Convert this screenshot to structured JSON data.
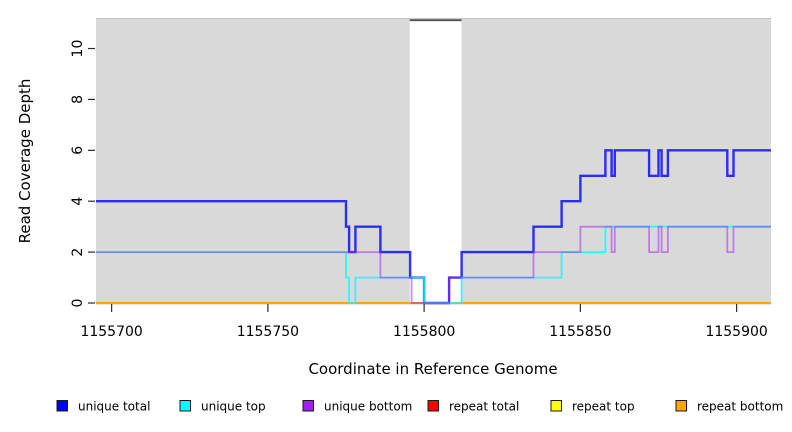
{
  "chart_data": {
    "type": "line",
    "subtype": "step-coverage",
    "title": "",
    "xlabel": "Coordinate in Reference Genome",
    "ylabel": "Read Coverage Depth",
    "xlim": [
      1155695,
      1155911
    ],
    "ylim": [
      0,
      11.16
    ],
    "xticks": [
      1155700,
      1155750,
      1155800,
      1155850,
      1155900
    ],
    "yticks": [
      0,
      2,
      4,
      6,
      8,
      10
    ],
    "grid": false,
    "legend_position": "bottom",
    "panel_fill": "#d9d9d9",
    "panel_top_border": "#c4c4c4",
    "axis_color": "#2b2b2b",
    "gap_region": {
      "x0": 1155795.4,
      "x1": 1155812,
      "fill": "#ffffff",
      "top_border_color": "#4d4d4d"
    },
    "draw_order": [
      "repeat total",
      "repeat top",
      "repeat bottom",
      "unique total",
      "unique top",
      "unique bottom"
    ],
    "series": [
      {
        "name": "unique total",
        "color": "#0000FF",
        "alpha": 0.8,
        "width": 2.4,
        "steps": [
          [
            1155695,
            4
          ],
          [
            1155775,
            3
          ],
          [
            1155776,
            2
          ],
          [
            1155778,
            3
          ],
          [
            1155786,
            2
          ],
          [
            1155795.5,
            1
          ],
          [
            1155800,
            0
          ],
          [
            1155808,
            1
          ],
          [
            1155812,
            2
          ],
          [
            1155835,
            3
          ],
          [
            1155844,
            4
          ],
          [
            1155850,
            5
          ],
          [
            1155858,
            6
          ],
          [
            1155860,
            5
          ],
          [
            1155861,
            6
          ],
          [
            1155872,
            5
          ],
          [
            1155875,
            6
          ],
          [
            1155876,
            5
          ],
          [
            1155878,
            6
          ],
          [
            1155897,
            5
          ],
          [
            1155899,
            6
          ]
        ],
        "end": 1155911
      },
      {
        "name": "unique top",
        "color": "#00FFFF",
        "alpha": 0.8,
        "width": 1.8,
        "steps": [
          [
            1155695,
            2
          ],
          [
            1155775,
            1
          ],
          [
            1155776,
            0
          ],
          [
            1155778,
            1
          ],
          [
            1155800,
            0
          ],
          [
            1155812,
            1
          ],
          [
            1155844,
            2
          ],
          [
            1155858,
            3
          ]
        ],
        "end": 1155911
      },
      {
        "name": "unique bottom",
        "color": "#A020F0",
        "alpha": 0.5,
        "width": 1.8,
        "steps": [
          [
            1155695,
            2
          ],
          [
            1155786,
            1
          ],
          [
            1155796,
            0
          ],
          [
            1155808,
            1
          ],
          [
            1155835,
            2
          ],
          [
            1155850,
            3
          ],
          [
            1155860,
            2
          ],
          [
            1155861,
            3
          ],
          [
            1155872,
            2
          ],
          [
            1155875,
            3
          ],
          [
            1155876,
            2
          ],
          [
            1155878,
            3
          ],
          [
            1155897,
            2
          ],
          [
            1155899,
            3
          ]
        ],
        "end": 1155911
      },
      {
        "name": "repeat total",
        "color": "#FF0000",
        "alpha": 1,
        "width": 1.2,
        "steps": [
          [
            1155695,
            0
          ]
        ],
        "end": 1155911
      },
      {
        "name": "repeat top",
        "color": "#FFFF00",
        "alpha": 1,
        "width": 1.2,
        "steps": [
          [
            1155695,
            0
          ]
        ],
        "end": 1155911
      },
      {
        "name": "repeat bottom",
        "color": "#FFA500",
        "alpha": 1,
        "width": 2,
        "steps": [
          [
            1155695,
            0
          ]
        ],
        "end": 1155911
      }
    ]
  },
  "legend": {
    "items": [
      {
        "label": "unique total",
        "color": "#0000FF"
      },
      {
        "label": "unique top",
        "color": "#00FFFF"
      },
      {
        "label": "unique bottom",
        "color": "#A020F0"
      },
      {
        "label": "repeat total",
        "color": "#FF0000"
      },
      {
        "label": "repeat top",
        "color": "#FFFF00"
      },
      {
        "label": "repeat bottom",
        "color": "#FFA500"
      }
    ]
  }
}
